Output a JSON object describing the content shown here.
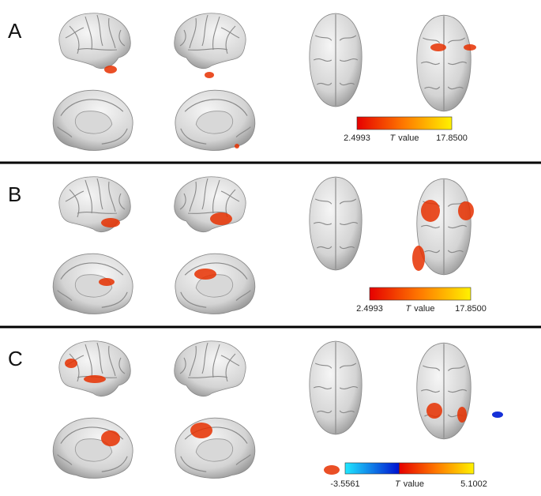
{
  "panels": [
    {
      "label": "A",
      "colorbar": {
        "min": "2.4993",
        "max": "17.8500",
        "title": {
          "symbol": "T",
          "text": "value"
        }
      }
    },
    {
      "label": "B",
      "colorbar": {
        "min": "2.4993",
        "max": "17.8500",
        "title": {
          "symbol": "T",
          "text": "value"
        }
      }
    },
    {
      "label": "C",
      "colorbar": {
        "min": "-3.5561",
        "max": "5.1002",
        "title": {
          "symbol": "T",
          "text": "value"
        }
      }
    }
  ]
}
